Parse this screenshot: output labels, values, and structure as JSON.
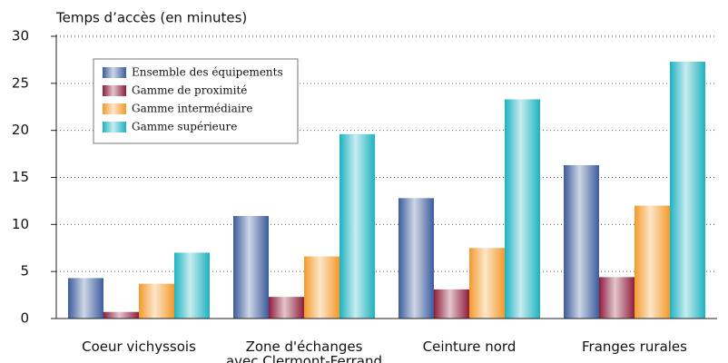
{
  "chart_data": {
    "type": "bar",
    "ylabel": "Temps d’accès (en minutes)",
    "categories": [
      "Coeur vichyssois",
      "Zone d'échanges\navec Clermont-Ferrand",
      "Ceinture nord",
      "Franges rurales"
    ],
    "series": [
      {
        "name": "Ensemble des équipements",
        "color": "#3b5c9c",
        "values": [
          4.3,
          10.9,
          12.8,
          16.3
        ]
      },
      {
        "name": "Gamme de proximité",
        "color": "#8e1c3c",
        "values": [
          0.7,
          2.3,
          3.1,
          4.4
        ]
      },
      {
        "name": "Gamme intermédiaire",
        "color": "#f39a2a",
        "values": [
          3.7,
          6.6,
          7.5,
          12.0
        ]
      },
      {
        "name": "Gamme supérieure",
        "color": "#1eb2c0",
        "values": [
          7.0,
          19.6,
          23.3,
          27.3
        ]
      }
    ],
    "ylim": [
      0,
      30
    ],
    "yticks": [
      0,
      5,
      10,
      15,
      20,
      25,
      30
    ],
    "grid": true,
    "legend": "upper left"
  }
}
